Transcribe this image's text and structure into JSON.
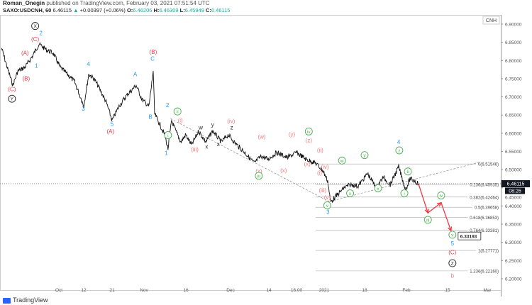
{
  "header": {
    "author": "Roman_Onegin",
    "published": "published on TradingView.com, February 03, 2021 07:51:54 UTC",
    "symbol": "SAXO:USDCNH, 60",
    "last": "6.46115",
    "arrow": "▲",
    "change": "+0.00397 (+0.06%)",
    "o_label": "O:",
    "o": "6.46206",
    "h_label": "H:",
    "h": "6.46309",
    "l_label": "L:",
    "l": "6.45949",
    "c_label": "C:",
    "c": "6.46115"
  },
  "currency_badge": "CNH",
  "current_price": "6.46115",
  "countdown": "08:26",
  "target_price": "6.33193",
  "footer": {
    "brand": "TradingView"
  },
  "colors": {
    "blue": "#2196f3",
    "red": "#f23645",
    "pink": "#f07c7c",
    "green": "#4caf50",
    "black": "#222222",
    "forecast": "#f23645"
  },
  "chart_data": {
    "type": "line",
    "title": "SAXO:USDCNH, 60",
    "ylim": [
      6.18,
      6.92
    ],
    "y_ticks": [
      "6.90000",
      "6.85000",
      "6.80000",
      "6.75000",
      "6.70000",
      "6.65000",
      "6.60000",
      "6.55000",
      "6.50000",
      "6.45000",
      "6.40000",
      "6.35000",
      "6.30000",
      "6.25000",
      "6.20000"
    ],
    "x_ticks": [
      {
        "label": "Oct",
        "day": 0
      },
      {
        "label": "12",
        "day": 11
      },
      {
        "label": "21",
        "day": 20
      },
      {
        "label": "Nov",
        "day": 31
      },
      {
        "label": "16",
        "day": 46
      },
      {
        "label": "Dec",
        "day": 61
      },
      {
        "label": "14",
        "day": 74
      },
      {
        "label": "16:00",
        "day": 84
      },
      {
        "label": "2021",
        "day": 92
      },
      {
        "label": "18",
        "day": 109
      },
      {
        "label": "Feb",
        "day": 123
      },
      {
        "label": "15",
        "day": 137
      },
      {
        "label": "Mar",
        "day": 151
      }
    ],
    "price_path": [
      [
        -25.4,
        6.834
      ],
      [
        -22.9,
        6.781
      ],
      [
        -20.4,
        6.732
      ],
      [
        -18.2,
        6.771
      ],
      [
        -15.1,
        6.781
      ],
      [
        -11.9,
        6.81
      ],
      [
        -8.8,
        6.845
      ],
      [
        -5.7,
        6.83
      ],
      [
        -2.5,
        6.82
      ],
      [
        0.6,
        6.781
      ],
      [
        3.8,
        6.762
      ],
      [
        6.9,
        6.742
      ],
      [
        10,
        6.693
      ],
      [
        11,
        6.674
      ],
      [
        12.6,
        6.762
      ],
      [
        14.1,
        6.752
      ],
      [
        16,
        6.723
      ],
      [
        18.2,
        6.684
      ],
      [
        20,
        6.635
      ],
      [
        22.4,
        6.674
      ],
      [
        24.9,
        6.703
      ],
      [
        28.3,
        6.732
      ],
      [
        30.3,
        6.693
      ],
      [
        32.8,
        6.674
      ],
      [
        34.3,
        6.771
      ],
      [
        34.8,
        6.654
      ],
      [
        36.6,
        6.625
      ],
      [
        38.4,
        6.596
      ],
      [
        39.6,
        6.557
      ],
      [
        40.9,
        6.635
      ],
      [
        42.4,
        6.606
      ],
      [
        44.2,
        6.576
      ],
      [
        46,
        6.596
      ],
      [
        47.9,
        6.567
      ],
      [
        50.3,
        6.606
      ],
      [
        52.7,
        6.576
      ],
      [
        55,
        6.606
      ],
      [
        57.9,
        6.576
      ],
      [
        60.3,
        6.596
      ],
      [
        62.2,
        6.576
      ],
      [
        65.8,
        6.547
      ],
      [
        69,
        6.518
      ],
      [
        71.4,
        6.537
      ],
      [
        73.8,
        6.528
      ],
      [
        76.5,
        6.547
      ],
      [
        80,
        6.533
      ],
      [
        83,
        6.547
      ],
      [
        86.2,
        6.528
      ],
      [
        89.2,
        6.518
      ],
      [
        91.5,
        6.498
      ],
      [
        93.5,
        6.469
      ],
      [
        94.7,
        6.411
      ],
      [
        97.4,
        6.43
      ],
      [
        100.4,
        6.45
      ],
      [
        103.3,
        6.459
      ],
      [
        106.3,
        6.455
      ],
      [
        110,
        6.489
      ],
      [
        112.9,
        6.45
      ],
      [
        115.2,
        6.479
      ],
      [
        117.6,
        6.459
      ],
      [
        120.4,
        6.508
      ],
      [
        121.8,
        6.469
      ],
      [
        122.7,
        6.444
      ],
      [
        124.2,
        6.475
      ],
      [
        125.9,
        6.469
      ],
      [
        127.1,
        6.461
      ]
    ],
    "forecast_path": [
      [
        127.1,
        6.461
      ],
      [
        130.3,
        6.381
      ],
      [
        134.8,
        6.409
      ],
      [
        138.2,
        6.332
      ]
    ],
    "fib_levels": [
      {
        "label": "0(6.51546)",
        "price": 6.51546
      },
      {
        "label": "0.236(6.45935)",
        "price": 6.45935
      },
      {
        "label": "0.382(6.42464)",
        "price": 6.42464
      },
      {
        "label": "0.5(6.39658)",
        "price": 6.39658
      },
      {
        "label": "0.618(6.36853)",
        "price": 6.36853
      },
      {
        "label": "0.764(6.33381)",
        "price": 6.33381
      },
      {
        "label": "1(6.27771)",
        "price": 6.27771
      },
      {
        "label": "1.236(6.22160)",
        "price": 6.2216
      }
    ],
    "trendlines": [
      [
        [
          40.5,
          6.64
        ],
        [
          94.7,
          6.41
        ]
      ],
      [
        [
          93,
          6.41
        ],
        [
          148,
          6.52
        ]
      ]
    ],
    "wave_labels": [
      {
        "t": "X",
        "c": "black",
        "s": "circle",
        "d": -10.5,
        "p": 6.89
      },
      {
        "t": "2",
        "c": "blue",
        "d": -8,
        "p": 6.87
      },
      {
        "t": "(C)",
        "c": "red",
        "d": -10.5,
        "p": 6.853
      },
      {
        "t": "(A)",
        "c": "red",
        "d": -15,
        "p": 6.815
      },
      {
        "t": "1",
        "c": "blue",
        "d": -10,
        "p": 6.78
      },
      {
        "t": "(B)",
        "c": "red",
        "d": -14.5,
        "p": 6.745
      },
      {
        "t": "(C)",
        "c": "red",
        "d": -20.8,
        "p": 6.716
      },
      {
        "t": "Y",
        "c": "black",
        "s": "circle",
        "d": -20.8,
        "p": 6.69
      },
      {
        "t": "4",
        "c": "blue",
        "d": 12.5,
        "p": 6.785
      },
      {
        "t": "3",
        "c": "blue",
        "d": 10.8,
        "p": 6.662
      },
      {
        "t": "A",
        "c": "blue",
        "d": 28,
        "p": 6.757
      },
      {
        "t": "5",
        "c": "blue",
        "d": 20,
        "p": 6.62
      },
      {
        "t": "(A)",
        "c": "red",
        "d": 19.5,
        "p": 6.6
      },
      {
        "t": "(B)",
        "c": "red",
        "d": 34.3,
        "p": 6.818
      },
      {
        "t": "C",
        "c": "blue",
        "d": 34.1,
        "p": 6.8
      },
      {
        "t": "B",
        "c": "blue",
        "d": 33.3,
        "p": 6.64
      },
      {
        "t": "2",
        "c": "blue",
        "d": 39.4,
        "p": 6.672
      },
      {
        "t": "1",
        "c": "blue",
        "d": 39,
        "p": 6.54
      },
      {
        "t": "ii",
        "c": "green",
        "s": "circle",
        "d": 43,
        "p": 6.655
      },
      {
        "t": "i",
        "c": "green",
        "s": "circle",
        "d": 39.6,
        "p": 6.59
      },
      {
        "t": "(i)",
        "c": "pink",
        "d": 44,
        "p": 6.63
      },
      {
        "t": "(iii)",
        "c": "pink",
        "d": 49,
        "p": 6.55
      },
      {
        "t": "w",
        "c": "black",
        "d": 51,
        "p": 6.61
      },
      {
        "t": "y",
        "c": "black",
        "d": 55,
        "p": 6.618
      },
      {
        "t": "x",
        "c": "black",
        "d": 53,
        "p": 6.558
      },
      {
        "t": "x",
        "c": "black",
        "d": 56.9,
        "p": 6.565
      },
      {
        "t": "(iv)",
        "c": "pink",
        "d": 61.2,
        "p": 6.628
      },
      {
        "t": "z",
        "c": "black",
        "d": 61.4,
        "p": 6.61
      },
      {
        "t": "(w)",
        "c": "pink",
        "d": 71.6,
        "p": 6.585
      },
      {
        "t": "(x)",
        "c": "pink",
        "d": 70.6,
        "p": 6.49
      },
      {
        "t": "iii",
        "c": "green",
        "s": "circle",
        "d": 70.6,
        "p": 6.478
      },
      {
        "t": "(y)",
        "c": "pink",
        "d": 81.5,
        "p": 6.592
      },
      {
        "t": "(x)",
        "c": "pink",
        "d": 78.8,
        "p": 6.492
      },
      {
        "t": "iv",
        "c": "green",
        "s": "circle",
        "d": 87,
        "p": 6.6
      },
      {
        "t": "(z)",
        "c": "pink",
        "d": 87,
        "p": 6.575
      },
      {
        "t": "(ii)",
        "c": "pink",
        "d": 90.7,
        "p": 6.548
      },
      {
        "t": "(x)",
        "c": "pink",
        "d": 86.5,
        "p": 6.51
      },
      {
        "t": "(iv)",
        "c": "pink",
        "d": 92.3,
        "p": 6.502
      },
      {
        "t": "(i)",
        "c": "pink",
        "d": 90.5,
        "p": 6.486
      },
      {
        "t": "(iii)",
        "c": "pink",
        "d": 91.5,
        "p": 6.438
      },
      {
        "t": "(v)",
        "c": "pink",
        "d": 93.3,
        "p": 6.418
      },
      {
        "t": "v",
        "c": "green",
        "s": "circle",
        "d": 93.3,
        "p": 6.397
      },
      {
        "t": "3",
        "c": "blue",
        "d": 93.6,
        "p": 6.378
      },
      {
        "t": "w",
        "c": "green",
        "s": "circle",
        "d": 99.5,
        "p": 6.52
      },
      {
        "t": "x",
        "c": "green",
        "s": "circle",
        "d": 102.9,
        "p": 6.43
      },
      {
        "t": "y",
        "c": "green",
        "s": "circle",
        "d": 109,
        "p": 6.535
      },
      {
        "t": "x",
        "c": "green",
        "s": "circle",
        "d": 113.5,
        "p": 6.444
      },
      {
        "t": "4",
        "c": "blue",
        "d": 120.4,
        "p": 6.57
      },
      {
        "t": "z",
        "c": "green",
        "s": "circle",
        "d": 120.6,
        "p": 6.548
      },
      {
        "t": "ii",
        "c": "green",
        "s": "circle",
        "d": 123.5,
        "p": 6.49
      },
      {
        "t": "i",
        "c": "green",
        "s": "circle",
        "d": 122.3,
        "p": 6.43
      },
      {
        "t": "iii",
        "c": "green",
        "s": "circle",
        "d": 130.3,
        "p": 6.357
      },
      {
        "t": "iv",
        "c": "green",
        "s": "circle",
        "d": 134.8,
        "p": 6.424
      },
      {
        "t": "v",
        "c": "green",
        "s": "circle",
        "d": 138.7,
        "p": 6.316
      },
      {
        "t": "5",
        "c": "blue",
        "d": 138.7,
        "p": 6.292
      },
      {
        "t": "(C)",
        "c": "red",
        "d": 138.7,
        "p": 6.267
      },
      {
        "t": "Z",
        "c": "black",
        "s": "circle",
        "d": 138.7,
        "p": 6.238
      },
      {
        "t": "b",
        "c": "pink",
        "d": 138.7,
        "p": 6.203
      }
    ]
  }
}
